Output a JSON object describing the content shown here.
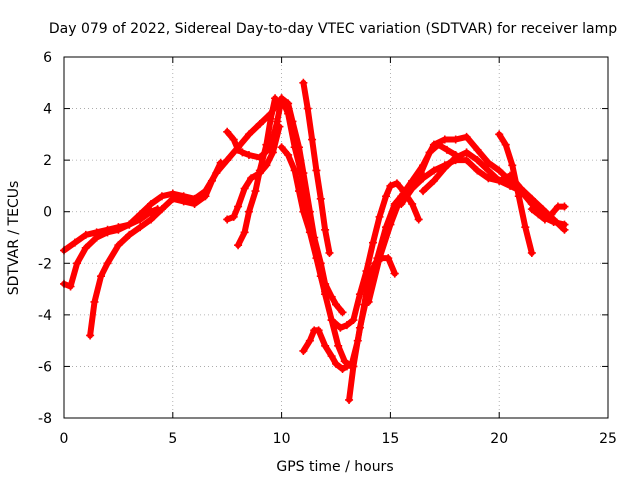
{
  "chart_data": {
    "type": "scatter",
    "title": "Day 079 of 2022, Sidereal Day-to-day VTEC variation (SDTVAR) for receiver lamp",
    "xlabel": "GPS time / hours",
    "ylabel": "SDTVAR / TECUs",
    "xlim": [
      0,
      25
    ],
    "ylim": [
      -8,
      6
    ],
    "xticks": [
      0,
      5,
      10,
      15,
      20,
      25
    ],
    "yticks": [
      -8,
      -6,
      -4,
      -2,
      0,
      2,
      4,
      6
    ],
    "grid": true,
    "marker": "+",
    "color": "#ff0000",
    "series": [
      {
        "x": [
          0.0,
          0.5,
          1.0,
          1.5,
          2.0,
          2.5,
          3.0,
          3.5,
          4.0,
          4.3
        ],
        "y": [
          -1.5,
          -1.2,
          -0.9,
          -0.8,
          -0.7,
          -0.6,
          -0.5,
          -0.3,
          0.0,
          0.1
        ]
      },
      {
        "x": [
          0.0,
          0.3,
          0.6,
          1.0,
          1.5,
          2.0,
          2.5,
          3.0,
          3.5,
          4.0,
          4.5,
          5.0,
          5.5,
          6.0,
          6.5,
          7.0,
          7.5,
          8.0,
          8.5,
          9.0,
          9.5,
          9.8,
          10.0,
          10.3,
          10.5,
          10.8,
          11.0,
          11.3,
          11.5,
          11.8,
          12.0,
          12.3,
          12.5,
          12.8
        ],
        "y": [
          -2.8,
          -2.9,
          -2.0,
          -1.4,
          -1.0,
          -0.8,
          -0.7,
          -0.5,
          -0.1,
          0.3,
          0.6,
          0.7,
          0.6,
          0.5,
          0.8,
          1.5,
          2.0,
          2.5,
          3.0,
          3.4,
          3.8,
          4.2,
          4.4,
          4.2,
          3.5,
          2.5,
          1.5,
          0.0,
          -1.0,
          -2.0,
          -2.8,
          -3.3,
          -3.6,
          -3.9
        ]
      },
      {
        "x": [
          1.2,
          1.4,
          1.7,
          2.0,
          2.5,
          3.0,
          3.5,
          4.0,
          4.5,
          5.0,
          5.5,
          6.0,
          6.5,
          6.8,
          7.2
        ],
        "y": [
          -4.8,
          -3.5,
          -2.5,
          -2.0,
          -1.3,
          -0.9,
          -0.6,
          -0.3,
          0.1,
          0.5,
          0.4,
          0.3,
          0.6,
          1.2,
          1.9
        ]
      },
      {
        "x": [
          7.5,
          7.8,
          8.0,
          8.2,
          8.5,
          9.0,
          9.5,
          9.8,
          10.0,
          10.3,
          10.6,
          10.9,
          11.2,
          11.5,
          11.8,
          12.0
        ],
        "y": [
          3.1,
          2.8,
          2.4,
          2.3,
          2.2,
          2.1,
          2.5,
          3.5,
          4.4,
          3.8,
          2.5,
          1.5,
          0.2,
          -1.2,
          -2.5,
          -3.1
        ]
      },
      {
        "x": [
          10.0,
          10.3,
          10.6,
          10.8,
          11.0,
          11.3,
          11.6,
          12.0,
          12.3,
          12.6,
          12.9,
          13.2,
          13.5,
          13.8,
          14.0,
          14.3,
          14.6,
          14.9,
          15.2
        ],
        "y": [
          2.5,
          2.2,
          1.6,
          0.8,
          0.0,
          -0.8,
          -1.8,
          -3.2,
          -4.2,
          -5.2,
          -5.8,
          -6.0,
          -5.0,
          -3.6,
          -2.6,
          -2.0,
          -1.8,
          -1.8,
          -2.4
        ]
      },
      {
        "x": [
          8.0,
          8.3,
          8.5,
          8.8,
          9.0,
          9.3,
          9.5,
          9.7
        ],
        "y": [
          -1.3,
          -0.8,
          0.0,
          0.8,
          1.6,
          2.6,
          3.6,
          4.4
        ]
      },
      {
        "x": [
          7.5,
          7.8,
          8.0,
          8.3,
          8.6,
          9.0,
          9.3,
          9.6,
          9.9
        ],
        "y": [
          -0.3,
          -0.2,
          0.2,
          0.9,
          1.3,
          1.5,
          1.8,
          2.3,
          3.3
        ]
      },
      {
        "x": [
          11.0,
          11.3,
          11.5,
          11.7,
          12.0,
          12.3,
          12.5,
          12.8,
          13.0
        ],
        "y": [
          -5.4,
          -5.0,
          -4.6,
          -4.6,
          -5.2,
          -5.6,
          -5.9,
          -6.1,
          -6.0
        ]
      },
      {
        "x": [
          11.0,
          11.2,
          11.4,
          11.6,
          11.8,
          12.0,
          12.2
        ],
        "y": [
          5.0,
          4.0,
          2.8,
          1.6,
          0.5,
          -0.7,
          -1.6
        ]
      },
      {
        "x": [
          12.3,
          12.7,
          13.0,
          13.3,
          13.6,
          13.9,
          14.2,
          14.5,
          14.8,
          15.0,
          15.3,
          15.6,
          16.0,
          16.3
        ],
        "y": [
          -4.2,
          -4.5,
          -4.4,
          -4.2,
          -3.2,
          -2.3,
          -1.2,
          -0.2,
          0.6,
          1.0,
          1.1,
          0.8,
          0.3,
          -0.3
        ]
      },
      {
        "x": [
          13.1,
          13.3,
          13.6,
          14.0,
          14.4,
          14.8,
          15.2,
          15.6,
          16.0,
          16.4,
          16.8,
          17.2,
          17.6,
          18.0
        ],
        "y": [
          -7.3,
          -6.0,
          -4.5,
          -3.0,
          -1.8,
          -0.6,
          0.3,
          0.7,
          1.0,
          1.5,
          2.3,
          2.6,
          2.4,
          2.2
        ]
      },
      {
        "x": [
          14.0,
          14.5,
          15.0,
          15.5,
          16.0,
          16.5,
          17.0,
          17.5,
          18.0,
          18.5,
          19.0,
          19.5,
          20.0,
          20.5,
          21.0,
          21.5,
          22.0,
          22.5,
          23.0
        ],
        "y": [
          -3.5,
          -1.8,
          -0.5,
          0.6,
          1.2,
          1.8,
          2.6,
          2.8,
          2.8,
          2.9,
          2.4,
          1.9,
          1.6,
          1.2,
          0.8,
          0.3,
          -0.2,
          -0.4,
          -0.5
        ]
      },
      {
        "x": [
          15.5,
          16.0,
          16.5,
          17.0,
          17.5,
          18.0,
          18.5,
          19.0,
          19.5,
          20.0,
          20.5,
          21.0,
          21.5,
          22.0,
          22.5,
          23.0
        ],
        "y": [
          0.3,
          0.9,
          1.3,
          1.6,
          1.8,
          2.0,
          2.0,
          1.6,
          1.3,
          1.2,
          1.4,
          0.9,
          0.5,
          0.1,
          -0.3,
          -0.7
        ]
      },
      {
        "x": [
          16.5,
          17.0,
          17.5,
          18.0,
          18.5,
          19.0,
          19.5,
          20.0,
          20.5,
          21.0
        ],
        "y": [
          0.8,
          1.2,
          1.7,
          2.1,
          2.3,
          2.0,
          1.6,
          1.2,
          1.0,
          0.8
        ]
      },
      {
        "x": [
          20.0,
          20.3,
          20.6,
          20.9,
          21.2,
          21.5
        ],
        "y": [
          3.0,
          2.6,
          1.8,
          0.6,
          -0.6,
          -1.6
        ]
      },
      {
        "x": [
          21.5,
          21.8,
          22.1,
          22.4,
          22.7,
          23.0
        ],
        "y": [
          0.1,
          -0.1,
          -0.3,
          -0.1,
          0.2,
          0.2
        ]
      }
    ]
  }
}
